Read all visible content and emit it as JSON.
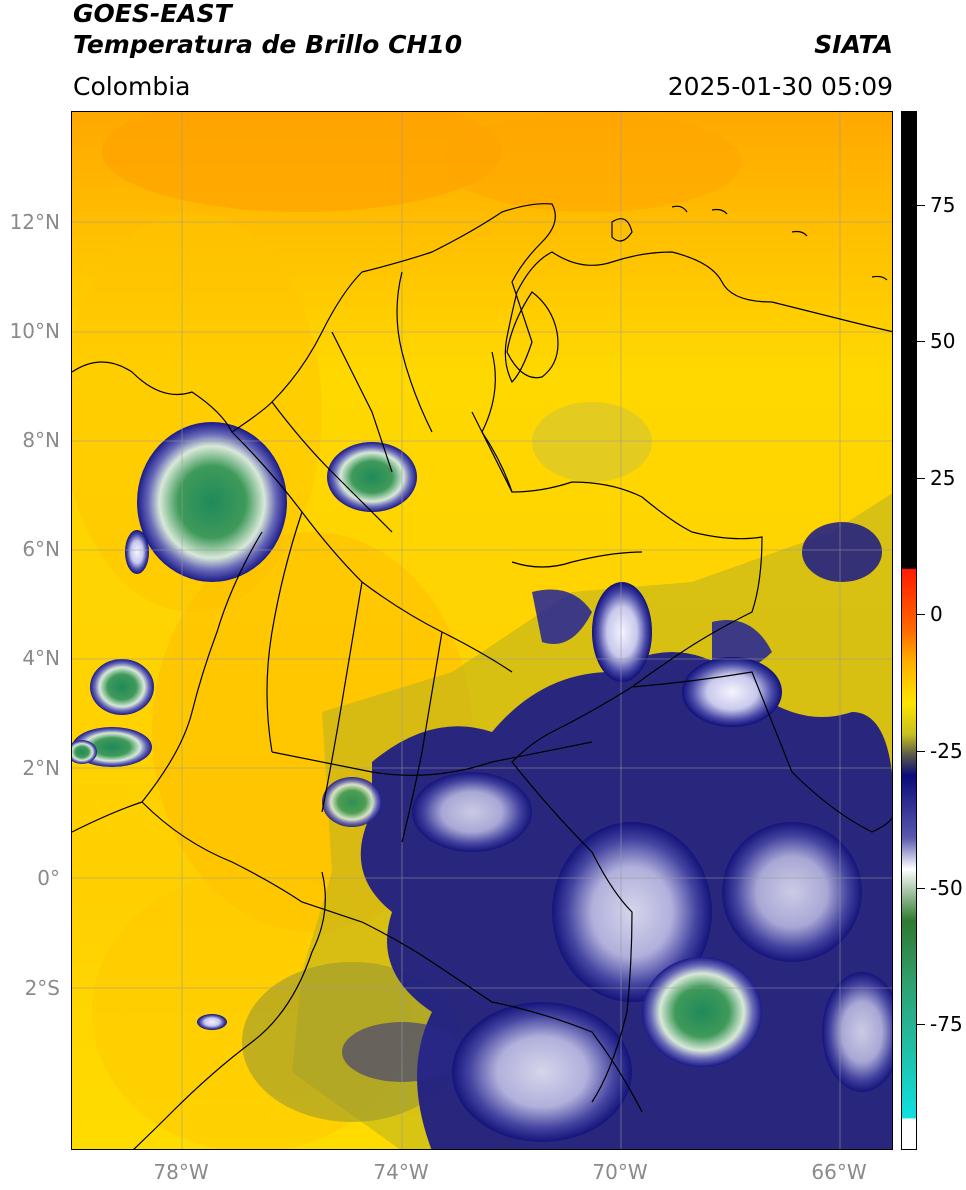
{
  "header": {
    "satellite": "GOES-EAST",
    "product": "Temperatura de Brillo CH10",
    "region": "Colombia",
    "agency": "SIATA",
    "datetime": "2025-01-30 05:09"
  },
  "map": {
    "lat_ticks": [
      "12°N",
      "10°N",
      "8°N",
      "6°N",
      "4°N",
      "2°N",
      "0°",
      "2°S"
    ],
    "lon_ticks": [
      "78°W",
      "74°W",
      "70°W",
      "66°W"
    ]
  },
  "colorbar": {
    "ticks": [
      "75",
      "50",
      "25",
      "0",
      "-25",
      "-50",
      "-75"
    ],
    "colors": {
      "black": "#000000",
      "red": "#ff2a00",
      "orange": "#ff8c00",
      "yellow": "#ffe400",
      "olive": "#8a8a2a",
      "navy": "#0a0a7a",
      "white": "#ffffff",
      "green": "#2f8a3a",
      "cyan": "#10d8d8"
    }
  }
}
